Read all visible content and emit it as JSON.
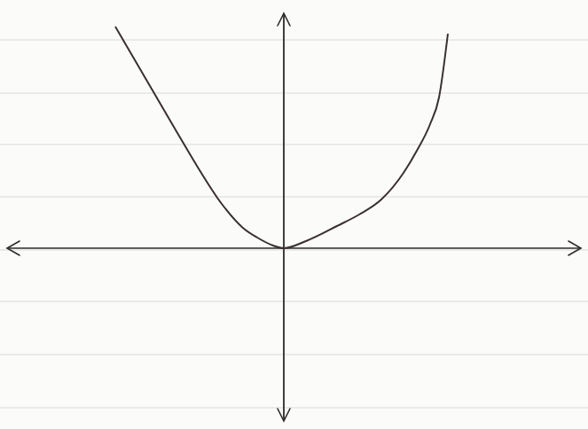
{
  "chart_data": {
    "type": "line",
    "x": [
      -1.9,
      -1.55,
      -1.2,
      -0.95,
      -0.7,
      -0.45,
      -0.3,
      -0.12,
      0,
      0.25,
      0.6,
      0.85,
      1.1,
      1.35,
      1.5,
      1.65,
      1.75,
      1.85
    ],
    "values": [
      2.5,
      1.9,
      1.3,
      0.88,
      0.5,
      0.22,
      0.12,
      0.03,
      0,
      0.08,
      0.25,
      0.38,
      0.55,
      0.85,
      1.1,
      1.4,
      1.7,
      2.42
    ],
    "xlim": [
      -3.12,
      3.35
    ],
    "ylim": [
      -1.95,
      2.65
    ],
    "tick_labels": false,
    "color": "#3a3030"
  }
}
